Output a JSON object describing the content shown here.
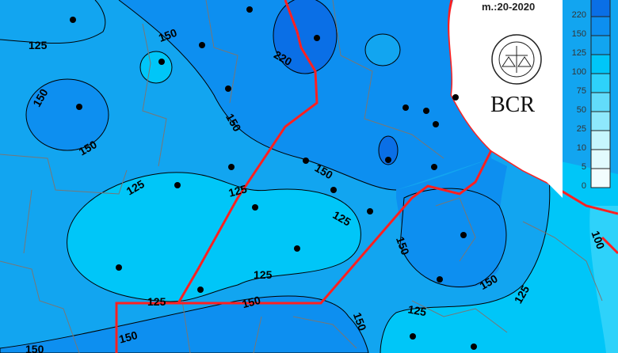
{
  "map": {
    "title_partial": "m.:20-2020",
    "logo_text": "BCR",
    "logo_seal_text": "BOLSA DE COMERCIO DE ROSARIO",
    "contour_labels": [
      "125",
      "150",
      "220",
      "150",
      "150",
      "150",
      "125",
      "125",
      "150",
      "125",
      "125",
      "125",
      "150",
      "150",
      "150",
      "150",
      "125",
      "125",
      "150",
      "100",
      "150"
    ],
    "legend": {
      "levels": [
        "220",
        "150",
        "125",
        "100",
        "75",
        "50",
        "25",
        "10",
        "5",
        "0"
      ],
      "colors": [
        "#0a6fe6",
        "#0d8ff0",
        "#12a5f0",
        "#00c6f8",
        "#2ed2fa",
        "#62dcfa",
        "#8ee8fc",
        "#c6f6fd",
        "#e2fbfe",
        "#f2fdfe"
      ]
    },
    "colors": {
      "province_border": "#ff2020",
      "district_border": "#777777",
      "contour_line": "#000000",
      "station_dot": "#000000"
    }
  }
}
